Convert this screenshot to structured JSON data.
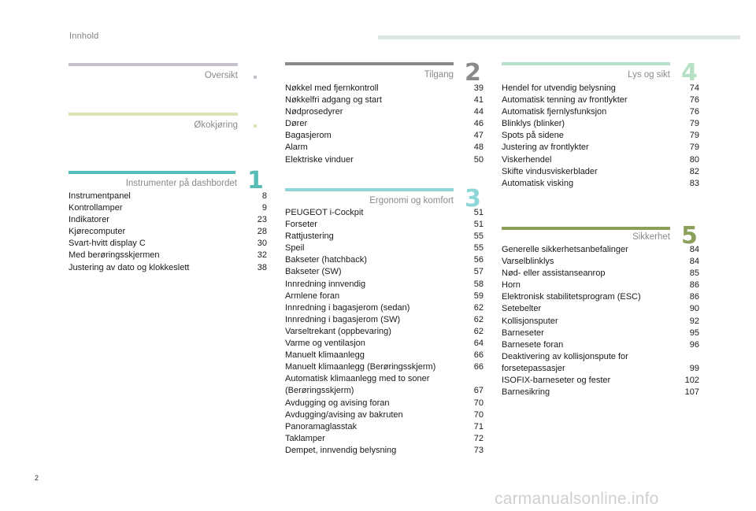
{
  "header": {
    "title": "Innhold"
  },
  "sections": {
    "oversikt": {
      "title": "Oversikt",
      "color": "#c7c1cc"
    },
    "okokjoring": {
      "title": "Økokjøring",
      "color": "#dde3b2"
    },
    "instrumenter": {
      "title": "Instrumenter på dashbordet",
      "number": "1",
      "color": "#57bdb6",
      "entries": [
        {
          "title": "Instrumentpanel",
          "page": "8"
        },
        {
          "title": "Kontrollamper",
          "page": "9"
        },
        {
          "title": "Indikatorer",
          "page": "23"
        },
        {
          "title": "Kjørecomputer",
          "page": "28"
        },
        {
          "title": "Svart-hvitt display C",
          "page": "30"
        },
        {
          "title": "Med berøringsskjermen",
          "page": "32"
        },
        {
          "title": "Justering av dato og klokkeslett",
          "page": "38"
        }
      ]
    },
    "tilgang": {
      "title": "Tilgang",
      "number": "2",
      "color": "#8a8a8a",
      "entries": [
        {
          "title": "Nøkkel med fjernkontroll",
          "page": "39"
        },
        {
          "title": "Nøkkelfri adgang og start",
          "page": "41"
        },
        {
          "title": "Nødprosedyrer",
          "page": "44"
        },
        {
          "title": "Dører",
          "page": "46"
        },
        {
          "title": "Bagasjerom",
          "page": "47"
        },
        {
          "title": "Alarm",
          "page": "48"
        },
        {
          "title": "Elektriske vinduer",
          "page": "50"
        }
      ]
    },
    "ergonomi": {
      "title": "Ergonomi og komfort",
      "number": "3",
      "color": "#8ed7d8",
      "entries": [
        {
          "title": "PEUGEOT i-Cockpit",
          "page": "51"
        },
        {
          "title": "Forseter",
          "page": "51"
        },
        {
          "title": "Rattjustering",
          "page": "55"
        },
        {
          "title": "Speil",
          "page": "55"
        },
        {
          "title": "Bakseter (hatchback)",
          "page": "56"
        },
        {
          "title": "Bakseter (SW)",
          "page": "57"
        },
        {
          "title": "Innredning innvendig",
          "page": "58"
        },
        {
          "title": "Armlene foran",
          "page": "59"
        },
        {
          "title": "Innredning i bagasjerom (sedan)",
          "page": "62"
        },
        {
          "title": "Innredning i bagasjerom (SW)",
          "page": "62"
        },
        {
          "title": "Varseltrekant (oppbevaring)",
          "page": "62"
        },
        {
          "title": "Varme og ventilasjon",
          "page": "64"
        },
        {
          "title": "Manuelt klimaanlegg",
          "page": "66"
        },
        {
          "title": "Manuelt klimaanlegg (Berøringsskjerm)",
          "page": "66"
        },
        {
          "title": "Automatisk klimaanlegg med to soner\n(Berøringsskjerm)",
          "page": "67"
        },
        {
          "title": "Avdugging og avising foran",
          "page": "70"
        },
        {
          "title": "Avdugging/avising av bakruten",
          "page": "70"
        },
        {
          "title": "Panoramaglasstak",
          "page": "71"
        },
        {
          "title": "Taklamper",
          "page": "72"
        },
        {
          "title": "Dempet, innvendig belysning",
          "page": "73"
        }
      ]
    },
    "lys": {
      "title": "Lys og sikt",
      "number": "4",
      "color": "#b6e1c6",
      "entries": [
        {
          "title": "Hendel for utvendig belysning",
          "page": "74"
        },
        {
          "title": "Automatisk tenning av frontlykter",
          "page": "76"
        },
        {
          "title": "Automatisk fjernlysfunksjon",
          "page": "76"
        },
        {
          "title": "Blinklys (blinker)",
          "page": "79"
        },
        {
          "title": "Spots på sidene",
          "page": "79"
        },
        {
          "title": "Justering av frontlykter",
          "page": "79"
        },
        {
          "title": "Viskerhendel",
          "page": "80"
        },
        {
          "title": "Skifte vindusviskerblader",
          "page": "82"
        },
        {
          "title": "Automatisk visking",
          "page": "83"
        }
      ]
    },
    "sikkerhet": {
      "title": "Sikkerhet",
      "number": "5",
      "color": "#8aa05a",
      "entries": [
        {
          "title": "Generelle sikkerhetsanbefalinger",
          "page": "84"
        },
        {
          "title": "Varselblinklys",
          "page": "84"
        },
        {
          "title": "Nød- eller assistanseanrop",
          "page": "85"
        },
        {
          "title": "Horn",
          "page": "86"
        },
        {
          "title": "Elektronisk stabilitetsprogram (ESC)",
          "page": "86"
        },
        {
          "title": "Setebelter",
          "page": "90"
        },
        {
          "title": "Kollisjonsputer",
          "page": "92"
        },
        {
          "title": "Barneseter",
          "page": "95"
        },
        {
          "title": "Barnesete foran",
          "page": "96"
        },
        {
          "title": "Deaktivering av kollisjonspute for\nforsetepassasjer",
          "page": "99"
        },
        {
          "title": "ISOFIX-barneseter og fester",
          "page": "102"
        },
        {
          "title": "Barnesikring",
          "page": "107"
        }
      ]
    }
  },
  "footer": {
    "page_number": "2",
    "watermark": "carmanualsonline.info"
  }
}
